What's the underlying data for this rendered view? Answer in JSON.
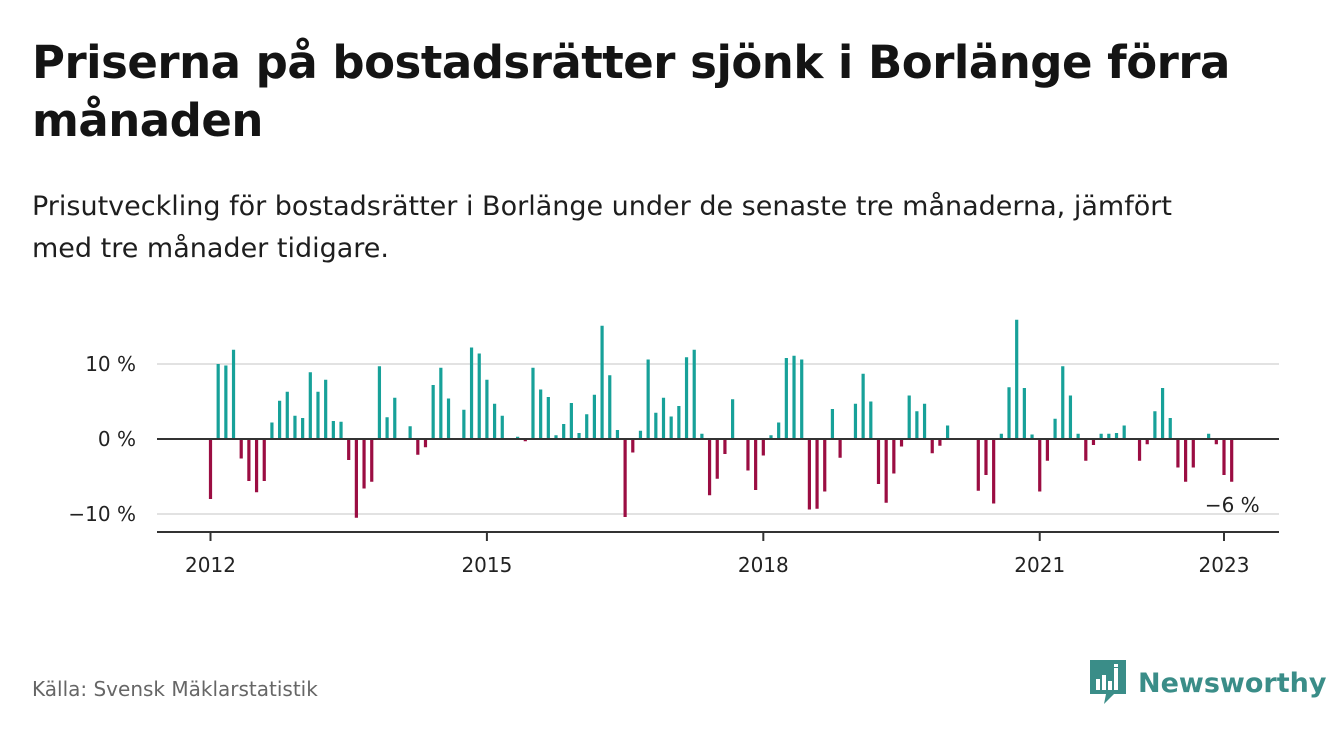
{
  "header": {
    "title": "Priserna på bostadsrätter sjönk i Borlänge förra månaden",
    "subtitle": "Prisutveckling för bostadsrätter i Borlänge under de senaste tre månaderna, jämfört med tre månader tidigare."
  },
  "footer": {
    "source": "Källa: Svensk Mäklarstatistik",
    "brand": "Newsworthy"
  },
  "colors": {
    "positive": "#17a199",
    "negative": "#9b0d42",
    "grid": "#d9d9d9",
    "zero_line": "#333333",
    "brand": "#3a8d88"
  },
  "chart_data": {
    "type": "bar",
    "start": "2012-01",
    "end": "2023-01",
    "x_tick_labels": [
      "2012",
      "2015",
      "2018",
      "2021",
      "2023"
    ],
    "x_tick_dates": [
      "2012-01",
      "2015-01",
      "2018-01",
      "2021-01",
      "2023-01"
    ],
    "y_ticks": [
      10,
      0,
      -10
    ],
    "y_tick_labels": [
      "10 %",
      "0 %",
      "−10 %"
    ],
    "ylim": [
      -12,
      16
    ],
    "grid": true,
    "last_value_label": "−6 %",
    "values": [
      -8,
      10,
      9.8,
      11.9,
      -2.6,
      -5.6,
      -7.1,
      -5.6,
      2.2,
      5.1,
      6.3,
      3.1,
      2.8,
      8.9,
      6.3,
      7.9,
      2.4,
      2.3,
      -2.8,
      -10.5,
      -6.6,
      -5.7,
      9.7,
      2.9,
      5.5,
      0,
      1.7,
      -2.1,
      -1.1,
      7.2,
      9.5,
      5.4,
      0,
      3.9,
      12.2,
      11.4,
      7.9,
      4.7,
      3.1,
      0,
      0.3,
      -0.3,
      9.5,
      6.6,
      5.6,
      0.5,
      2,
      4.8,
      0.8,
      3.3,
      5.9,
      15.1,
      8.5,
      1.2,
      -10.4,
      -1.8,
      1.1,
      10.6,
      3.5,
      5.5,
      3,
      4.4,
      10.9,
      11.9,
      0.7,
      -7.5,
      -5.3,
      -2,
      5.3,
      0,
      -4.2,
      -6.8,
      -2.2,
      0.5,
      2.2,
      10.8,
      11.1,
      10.6,
      -9.4,
      -9.3,
      -7,
      4,
      -2.5,
      0,
      4.7,
      8.7,
      5,
      -6,
      -8.5,
      -4.6,
      -1,
      5.8,
      3.7,
      4.7,
      -1.9,
      -0.9,
      1.8,
      0,
      0,
      0,
      -6.9,
      -4.8,
      -8.6,
      0.7,
      6.9,
      15.9,
      6.8,
      0.6,
      -7,
      -2.9,
      2.7,
      9.7,
      5.8,
      0.7,
      -2.9,
      -0.8,
      0.7,
      0.7,
      0.8,
      1.8,
      0,
      -2.9,
      -0.7,
      3.7,
      6.8,
      2.8,
      -3.8,
      -5.7,
      -3.8,
      0,
      0.7,
      -0.7,
      -4.8,
      -5.7
    ]
  }
}
